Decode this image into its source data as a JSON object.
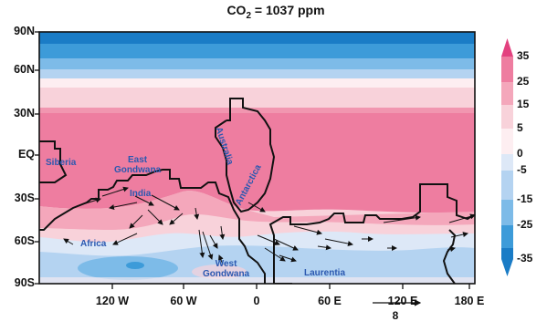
{
  "title": {
    "text": "CO",
    "sub": "2",
    "rest": " = 1037 ppm"
  },
  "y_axis": {
    "ticks": [
      "90N",
      "60N",
      "30N",
      "EQ",
      "30S",
      "60S",
      "90S"
    ]
  },
  "x_axis": {
    "ticks": [
      "120 W",
      "60 W",
      "0",
      "60 E",
      "120 E",
      "180 E"
    ]
  },
  "colorbar": {
    "ticks": [
      "35",
      "25",
      "15",
      "5",
      "0",
      "-5",
      "-15",
      "-25",
      "-35"
    ],
    "colors": [
      "#e3417f",
      "#ee7da0",
      "#f4a7bb",
      "#f8d2da",
      "#fdeef1",
      "#dde8f7",
      "#b4d3f1",
      "#7dbbe8",
      "#3d9bd9",
      "#1a7cc6"
    ]
  },
  "vector_scale": {
    "label": "8"
  },
  "landmasses": {
    "siberia": "Siberia",
    "east_gondwana": [
      "East",
      "Gondwana"
    ],
    "india": "India",
    "australia": "Australia",
    "antarctica": "Antarctica",
    "africa": "Africa",
    "west_gondwana": [
      "West",
      "Gondwana"
    ],
    "laurentia": "Laurentia"
  }
}
